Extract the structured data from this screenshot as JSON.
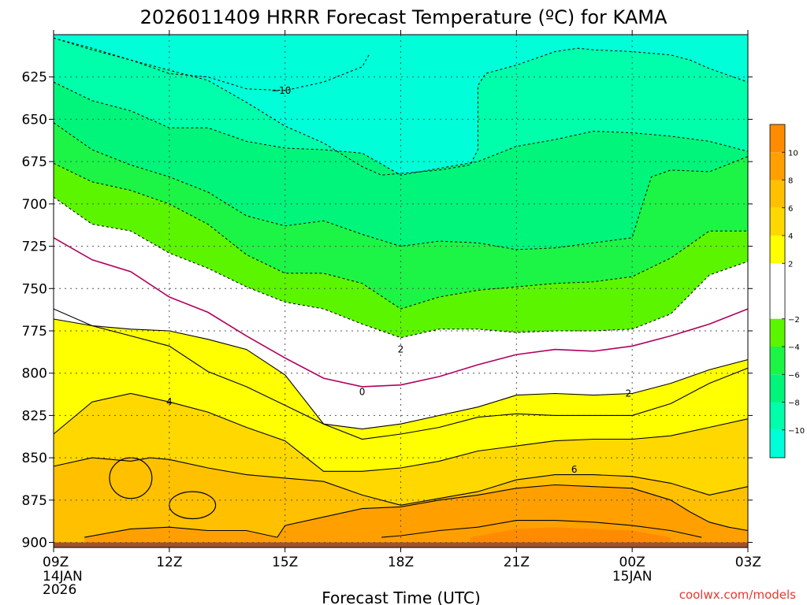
{
  "chart_data": {
    "type": "heatmap",
    "title": "2026011409 HRRR Forecast Temperature (ºC) for KAMA",
    "xlabel": "Forecast Time (UTC)",
    "ylabel": "",
    "source": "coolwx.com/models",
    "x_ticks": [
      {
        "label": "09Z",
        "hour": 9,
        "sub": "14JAN",
        "sub2": "2026"
      },
      {
        "label": "12Z",
        "hour": 12,
        "sub": "",
        "sub2": ""
      },
      {
        "label": "15Z",
        "hour": 15,
        "sub": "",
        "sub2": ""
      },
      {
        "label": "18Z",
        "hour": 18,
        "sub": "",
        "sub2": ""
      },
      {
        "label": "21Z",
        "hour": 21,
        "sub": "",
        "sub2": ""
      },
      {
        "label": "00Z",
        "hour": 24,
        "sub": "15JAN",
        "sub2": ""
      },
      {
        "label": "03Z",
        "hour": 27,
        "sub": "",
        "sub2": ""
      }
    ],
    "y_ticks": [
      {
        "label": "625",
        "value": 625
      },
      {
        "label": "650",
        "value": 650
      },
      {
        "label": "675",
        "value": 675
      },
      {
        "label": "700",
        "value": 700
      },
      {
        "label": "725",
        "value": 725
      },
      {
        "label": "750",
        "value": 750
      },
      {
        "label": "775",
        "value": 775
      },
      {
        "label": "800",
        "value": 800
      },
      {
        "label": "825",
        "value": 825
      },
      {
        "label": "850",
        "value": 850
      },
      {
        "label": "875",
        "value": 875
      },
      {
        "label": "900",
        "value": 900
      }
    ],
    "xlim": [
      9,
      27
    ],
    "ylim": [
      600,
      903
    ],
    "ground_level_hpa": 900,
    "colorbar": {
      "bins": [
        {
          "lo": -12,
          "hi": -10,
          "color": "#00ffd8"
        },
        {
          "lo": -10,
          "hi": -8,
          "color": "#00ffaa"
        },
        {
          "lo": -8,
          "hi": -6,
          "color": "#00f57a"
        },
        {
          "lo": -6,
          "hi": -4,
          "color": "#1cf545"
        },
        {
          "lo": -4,
          "hi": -2,
          "color": "#5cf500"
        },
        {
          "lo": -2,
          "hi": 2,
          "color": "#ffffff"
        },
        {
          "lo": 2,
          "hi": 4,
          "color": "#ffff00"
        },
        {
          "lo": 4,
          "hi": 6,
          "color": "#ffd800"
        },
        {
          "lo": 6,
          "hi": 8,
          "color": "#ffc000"
        },
        {
          "lo": 8,
          "hi": 10,
          "color": "#ffa000"
        },
        {
          "lo": 10,
          "hi": 12,
          "color": "#ff8c00"
        }
      ],
      "tick_labels": [
        "10",
        "8",
        "6",
        "4",
        "2",
        "−2",
        "−4",
        "−6",
        "−8",
        "−10"
      ],
      "tick_values": [
        10,
        8,
        6,
        4,
        2,
        -2,
        -4,
        -6,
        -8,
        -10
      ]
    },
    "isotherms": [
      {
        "temp": -10,
        "label": "−10",
        "label_at": [
          14.9,
          633
        ],
        "points": [
          [
            9,
            602
          ],
          [
            10,
            609
          ],
          [
            11,
            615
          ],
          [
            12,
            623
          ],
          [
            13,
            625
          ],
          [
            14,
            632
          ],
          [
            15,
            633
          ],
          [
            16,
            628
          ],
          [
            17,
            619
          ],
          [
            17.2,
            611
          ]
        ]
      },
      {
        "temp": -8,
        "label": "",
        "label_at": null,
        "points": [
          [
            9,
            602
          ],
          [
            10,
            608
          ],
          [
            11,
            615
          ],
          [
            12,
            621
          ],
          [
            13,
            627
          ],
          [
            14,
            640
          ],
          [
            15,
            654
          ],
          [
            16,
            664
          ],
          [
            17,
            678
          ],
          [
            17.5,
            683
          ],
          [
            18,
            682
          ],
          [
            19,
            680
          ],
          [
            19.8,
            677
          ],
          [
            20,
            668
          ],
          [
            20,
            630
          ],
          [
            20.2,
            623
          ],
          [
            21,
            618
          ],
          [
            22,
            610
          ],
          [
            22.6,
            608
          ],
          [
            23,
            609
          ],
          [
            24,
            610
          ],
          [
            25,
            612
          ],
          [
            25.5,
            615
          ],
          [
            26,
            620
          ],
          [
            27,
            628
          ]
        ]
      },
      {
        "temp": -6,
        "label": "",
        "label_at": null,
        "points": [
          [
            9,
            628
          ],
          [
            10,
            639
          ],
          [
            11,
            645
          ],
          [
            12,
            655
          ],
          [
            13,
            655
          ],
          [
            14,
            663
          ],
          [
            15,
            667
          ],
          [
            16,
            668
          ],
          [
            17,
            670
          ],
          [
            18,
            683
          ],
          [
            19,
            679
          ],
          [
            20,
            675
          ],
          [
            21,
            666
          ],
          [
            22,
            662
          ],
          [
            23,
            657
          ],
          [
            24,
            658
          ],
          [
            25,
            660
          ],
          [
            26,
            663
          ],
          [
            27,
            669
          ]
        ]
      },
      {
        "temp": -4,
        "label": "",
        "label_at": null,
        "points": [
          [
            9,
            652
          ],
          [
            10,
            668
          ],
          [
            11,
            677
          ],
          [
            12,
            684
          ],
          [
            13,
            693
          ],
          [
            14,
            707
          ],
          [
            15,
            713
          ],
          [
            16,
            710
          ],
          [
            17,
            718
          ],
          [
            18,
            725
          ],
          [
            19,
            722
          ],
          [
            20,
            723
          ],
          [
            21,
            727
          ],
          [
            22,
            726
          ],
          [
            23,
            723
          ],
          [
            24,
            720
          ],
          [
            24.2,
            705
          ],
          [
            24.5,
            684
          ],
          [
            25,
            680
          ],
          [
            26,
            681
          ],
          [
            27,
            672
          ]
        ]
      },
      {
        "temp": -2,
        "label": "",
        "label_at": null,
        "points": [
          [
            9,
            676
          ],
          [
            10,
            687
          ],
          [
            11,
            692
          ],
          [
            12,
            700
          ],
          [
            13,
            712
          ],
          [
            14,
            730
          ],
          [
            15,
            741
          ],
          [
            16,
            741
          ],
          [
            17,
            747
          ],
          [
            18,
            762
          ],
          [
            19,
            755
          ],
          [
            20,
            751
          ],
          [
            21,
            749
          ],
          [
            22,
            747
          ],
          [
            23,
            746
          ],
          [
            24,
            743
          ],
          [
            25,
            732
          ],
          [
            26,
            716
          ],
          [
            27,
            716
          ]
        ]
      },
      {
        "temp": -2,
        "label": "",
        "label_at": null,
        "points": [
          [
            9,
            696
          ],
          [
            10,
            712
          ],
          [
            11,
            716
          ],
          [
            12,
            729
          ],
          [
            13,
            738
          ],
          [
            14,
            749
          ],
          [
            15,
            758
          ],
          [
            16,
            762
          ],
          [
            17,
            771
          ],
          [
            18,
            779
          ],
          [
            19,
            774
          ],
          [
            20,
            774
          ],
          [
            21,
            776
          ],
          [
            22,
            775
          ],
          [
            23,
            775
          ],
          [
            24,
            774
          ],
          [
            25,
            765
          ],
          [
            26,
            742
          ],
          [
            27,
            734
          ]
        ]
      },
      {
        "temp": 2,
        "label": "2",
        "label_at": [
          18,
          786
        ],
        "points": [
          [
            9,
            762
          ],
          [
            10,
            772
          ],
          [
            11,
            778
          ],
          [
            12,
            784
          ],
          [
            13,
            799
          ],
          [
            14,
            808
          ],
          [
            15,
            819
          ],
          [
            16,
            830
          ],
          [
            17,
            839
          ],
          [
            18,
            836
          ],
          [
            19,
            832
          ],
          [
            20,
            826
          ],
          [
            21,
            824
          ],
          [
            22,
            825
          ],
          [
            23,
            825
          ],
          [
            24,
            825
          ],
          [
            25,
            818
          ],
          [
            26,
            806
          ],
          [
            27,
            797
          ]
        ]
      },
      {
        "temp": 0,
        "label": "0",
        "label_at": [
          17,
          811
        ],
        "points": [
          [
            9,
            720
          ],
          [
            10,
            733
          ],
          [
            11,
            740
          ],
          [
            12,
            755
          ],
          [
            13,
            764
          ],
          [
            14,
            778
          ],
          [
            15,
            791
          ],
          [
            16,
            803
          ],
          [
            17,
            808
          ],
          [
            18,
            807
          ],
          [
            19,
            802
          ],
          [
            20,
            795
          ],
          [
            21,
            789
          ],
          [
            22,
            786
          ],
          [
            23,
            787
          ],
          [
            24,
            784
          ],
          [
            25,
            778
          ],
          [
            26,
            771
          ],
          [
            27,
            762
          ]
        ]
      },
      {
        "temp": 2,
        "label": "2",
        "label_at": [
          23.9,
          812
        ],
        "points": [
          [
            9,
            768
          ],
          [
            10,
            772
          ],
          [
            11,
            774
          ],
          [
            12,
            775
          ],
          [
            13,
            780
          ],
          [
            14,
            786
          ],
          [
            15,
            801
          ],
          [
            16,
            830
          ],
          [
            17,
            833
          ],
          [
            18,
            830
          ],
          [
            19,
            825
          ],
          [
            20,
            820
          ],
          [
            21,
            813
          ],
          [
            22,
            812
          ],
          [
            23,
            813
          ],
          [
            24,
            812
          ],
          [
            25,
            806
          ],
          [
            26,
            798
          ],
          [
            27,
            792
          ]
        ]
      },
      {
        "temp": 4,
        "label": "4",
        "label_at": [
          12,
          817
        ],
        "points": [
          [
            9,
            836
          ],
          [
            10,
            817
          ],
          [
            11,
            812
          ],
          [
            12,
            817
          ],
          [
            13,
            823
          ],
          [
            14,
            832
          ],
          [
            15,
            840
          ],
          [
            16,
            858
          ],
          [
            17,
            858
          ],
          [
            18,
            856
          ],
          [
            19,
            852
          ],
          [
            20,
            846
          ],
          [
            21,
            843
          ],
          [
            22,
            840
          ],
          [
            23,
            839
          ],
          [
            24,
            839
          ],
          [
            25,
            837
          ],
          [
            26,
            832
          ],
          [
            27,
            827
          ]
        ]
      },
      {
        "temp": 6,
        "label": "6",
        "label_at": [
          22.5,
          857
        ],
        "points": [
          [
            9,
            855
          ],
          [
            10,
            850
          ],
          [
            11,
            852
          ],
          [
            11.5,
            850
          ],
          [
            12,
            851
          ],
          [
            13,
            856
          ],
          [
            14,
            860
          ],
          [
            15,
            862
          ],
          [
            16,
            864
          ],
          [
            17,
            872
          ],
          [
            18,
            878
          ],
          [
            19,
            874
          ],
          [
            20,
            870
          ],
          [
            21,
            863
          ],
          [
            22,
            860
          ],
          [
            23,
            860
          ],
          [
            24,
            861
          ],
          [
            25,
            865
          ],
          [
            26,
            872
          ],
          [
            27,
            867
          ]
        ]
      },
      {
        "temp": 8,
        "label": "",
        "label_at": null,
        "points": [
          [
            14.8,
            897
          ],
          [
            15,
            890
          ],
          [
            16,
            885
          ],
          [
            17,
            880
          ],
          [
            18,
            879
          ],
          [
            19,
            875
          ],
          [
            20,
            872
          ],
          [
            21,
            868
          ],
          [
            22,
            866
          ],
          [
            23,
            867
          ],
          [
            24,
            868
          ],
          [
            25,
            875
          ],
          [
            25.5,
            882
          ],
          [
            26,
            888
          ],
          [
            26.5,
            891
          ],
          [
            27,
            893
          ]
        ]
      },
      {
        "temp": 8,
        "label": "",
        "label_at": null,
        "points": [
          [
            9.8,
            897
          ],
          [
            11,
            892
          ],
          [
            12,
            891
          ],
          [
            13,
            893
          ],
          [
            14,
            893
          ],
          [
            14.8,
            897
          ]
        ]
      },
      {
        "temp": 8,
        "label": "",
        "label_at": null,
        "points": [
          [
            17.5,
            897
          ],
          [
            18,
            896
          ],
          [
            19,
            893
          ],
          [
            20,
            891
          ],
          [
            21,
            887
          ],
          [
            22,
            887
          ],
          [
            23,
            888
          ],
          [
            24,
            890
          ],
          [
            25,
            893
          ],
          [
            25.8,
            897
          ]
        ]
      }
    ],
    "warm_cells": [
      {
        "temp": 6,
        "label": "",
        "center": [
          11,
          862
        ],
        "radius_hours": 0.55,
        "radius_hpa": 12
      },
      {
        "temp": 6,
        "label": "",
        "center": [
          12.6,
          878
        ],
        "radius_hours": 0.6,
        "radius_hpa": 8
      }
    ]
  }
}
